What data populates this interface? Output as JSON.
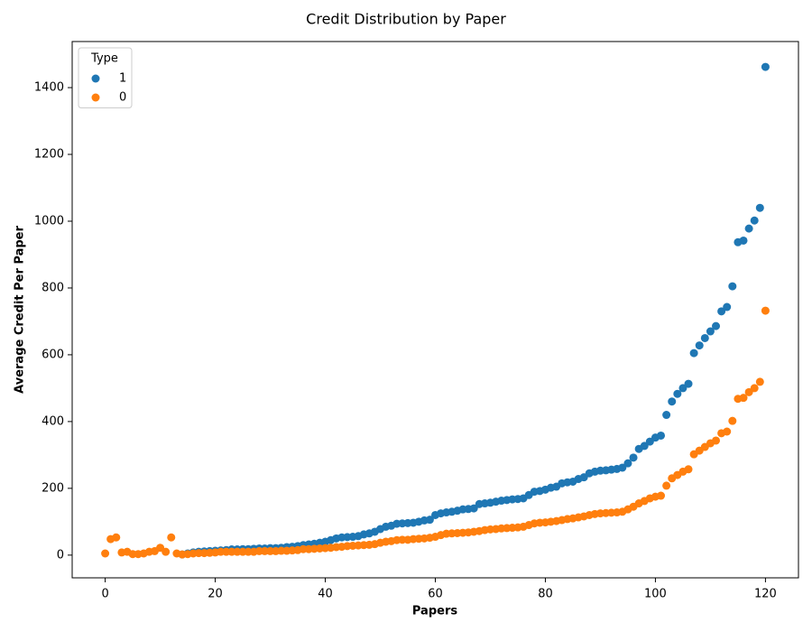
{
  "chart_data": {
    "type": "scatter",
    "title": "Credit Distribution by Paper",
    "x_label": "Papers",
    "y_label": "Average Credit Per Paper",
    "legend_title": "Type",
    "legend_position": "upper-left",
    "xlim": [
      -6,
      126
    ],
    "ylim": [
      -68,
      1538
    ],
    "xticks": [
      0,
      20,
      40,
      60,
      80,
      100,
      120
    ],
    "yticks": [
      0,
      200,
      400,
      600,
      800,
      1000,
      1200,
      1400
    ],
    "series": [
      {
        "name": "1",
        "color": "#1f77b4",
        "x": [
          14,
          15,
          16,
          17,
          18,
          19,
          20,
          21,
          22,
          23,
          24,
          25,
          26,
          27,
          28,
          29,
          30,
          31,
          32,
          33,
          34,
          35,
          36,
          37,
          38,
          39,
          40,
          41,
          42,
          43,
          44,
          45,
          46,
          47,
          48,
          49,
          50,
          51,
          52,
          53,
          54,
          55,
          56,
          57,
          58,
          59,
          60,
          61,
          62,
          63,
          64,
          65,
          66,
          67,
          68,
          69,
          70,
          71,
          72,
          73,
          74,
          75,
          76,
          77,
          78,
          79,
          80,
          81,
          82,
          83,
          84,
          85,
          86,
          87,
          88,
          89,
          90,
          91,
          92,
          93,
          94,
          95,
          96,
          97,
          98,
          99,
          100,
          101,
          102,
          103,
          104,
          105,
          106,
          107,
          108,
          109,
          110,
          111,
          112,
          113,
          114,
          115,
          116,
          117,
          118,
          119,
          120
        ],
        "values": [
          2,
          5,
          8,
          10,
          11,
          12,
          13,
          14,
          15,
          17,
          17,
          18,
          18,
          19,
          20,
          20,
          21,
          21,
          22,
          24,
          25,
          27,
          30,
          32,
          34,
          37,
          40,
          45,
          50,
          53,
          54,
          55,
          57,
          62,
          65,
          70,
          78,
          85,
          88,
          94,
          95,
          96,
          97,
          100,
          104,
          106,
          120,
          125,
          128,
          130,
          133,
          137,
          138,
          140,
          153,
          155,
          157,
          160,
          163,
          165,
          167,
          168,
          170,
          180,
          190,
          192,
          196,
          202,
          205,
          215,
          218,
          220,
          228,
          233,
          245,
          250,
          253,
          254,
          256,
          258,
          262,
          275,
          292,
          318,
          327,
          340,
          352,
          358,
          420,
          460,
          483,
          500,
          513,
          605,
          628,
          650,
          670,
          686,
          730,
          743,
          805,
          937,
          942,
          978,
          1002,
          1040,
          1462
        ]
      },
      {
        "name": "0",
        "color": "#ff7f0e",
        "x": [
          0,
          1,
          2,
          3,
          4,
          5,
          6,
          7,
          8,
          9,
          10,
          11,
          12,
          13,
          14,
          15,
          16,
          17,
          18,
          19,
          20,
          21,
          22,
          23,
          24,
          25,
          26,
          27,
          28,
          29,
          30,
          31,
          32,
          33,
          34,
          35,
          36,
          37,
          38,
          39,
          40,
          41,
          42,
          43,
          44,
          45,
          46,
          47,
          48,
          49,
          50,
          51,
          52,
          53,
          54,
          55,
          56,
          57,
          58,
          59,
          60,
          61,
          62,
          63,
          64,
          65,
          66,
          67,
          68,
          69,
          70,
          71,
          72,
          73,
          74,
          75,
          76,
          77,
          78,
          79,
          80,
          81,
          82,
          83,
          84,
          85,
          86,
          87,
          88,
          89,
          90,
          91,
          92,
          93,
          94,
          95,
          96,
          97,
          98,
          99,
          100,
          101,
          102,
          103,
          104,
          105,
          106,
          107,
          108,
          109,
          110,
          111,
          112,
          113,
          114,
          115,
          116,
          117,
          118,
          119,
          120
        ],
        "values": [
          5,
          48,
          53,
          8,
          10,
          3,
          3,
          5,
          10,
          12,
          22,
          10,
          53,
          5,
          2,
          3,
          5,
          6,
          6,
          7,
          8,
          10,
          10,
          10,
          10,
          10,
          10,
          10,
          12,
          12,
          12,
          12,
          13,
          13,
          14,
          15,
          18,
          18,
          19,
          20,
          21,
          22,
          24,
          25,
          27,
          28,
          29,
          30,
          31,
          33,
          37,
          40,
          42,
          45,
          46,
          46,
          48,
          49,
          50,
          52,
          55,
          60,
          64,
          65,
          66,
          67,
          68,
          70,
          72,
          75,
          77,
          78,
          80,
          81,
          82,
          83,
          85,
          90,
          95,
          97,
          98,
          100,
          102,
          105,
          108,
          110,
          113,
          116,
          120,
          123,
          125,
          126,
          127,
          128,
          130,
          137,
          145,
          155,
          162,
          170,
          175,
          178,
          208,
          230,
          240,
          250,
          257,
          302,
          313,
          324,
          335,
          343,
          365,
          370,
          402,
          468,
          471,
          488,
          500,
          519,
          732
        ]
      }
    ]
  }
}
